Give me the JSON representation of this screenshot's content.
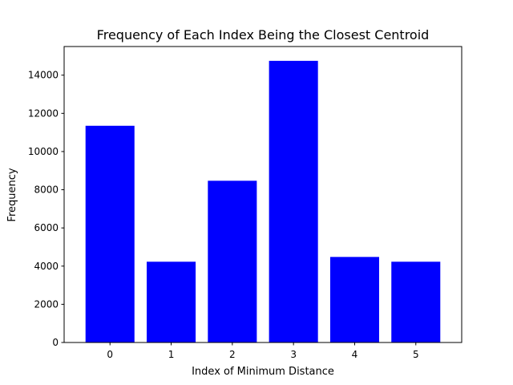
{
  "chart_data": {
    "type": "bar",
    "title": "Frequency of Each Index Being the Closest Centroid",
    "xlabel": "Index of Minimum Distance",
    "ylabel": "Frequency",
    "categories": [
      "0",
      "1",
      "2",
      "3",
      "4",
      "5"
    ],
    "values": [
      11350,
      4230,
      8470,
      14750,
      4480,
      4230
    ],
    "ylim": [
      0,
      15500
    ],
    "xlim": [
      -0.75,
      5.75
    ],
    "yticks": [
      0,
      2000,
      4000,
      6000,
      8000,
      10000,
      12000,
      14000
    ],
    "ytick_labels": [
      "0",
      "2000",
      "4000",
      "6000",
      "8000",
      "10000",
      "12000",
      "14000"
    ],
    "bar_color": "#0000ff",
    "grid": false,
    "legend": false
  }
}
